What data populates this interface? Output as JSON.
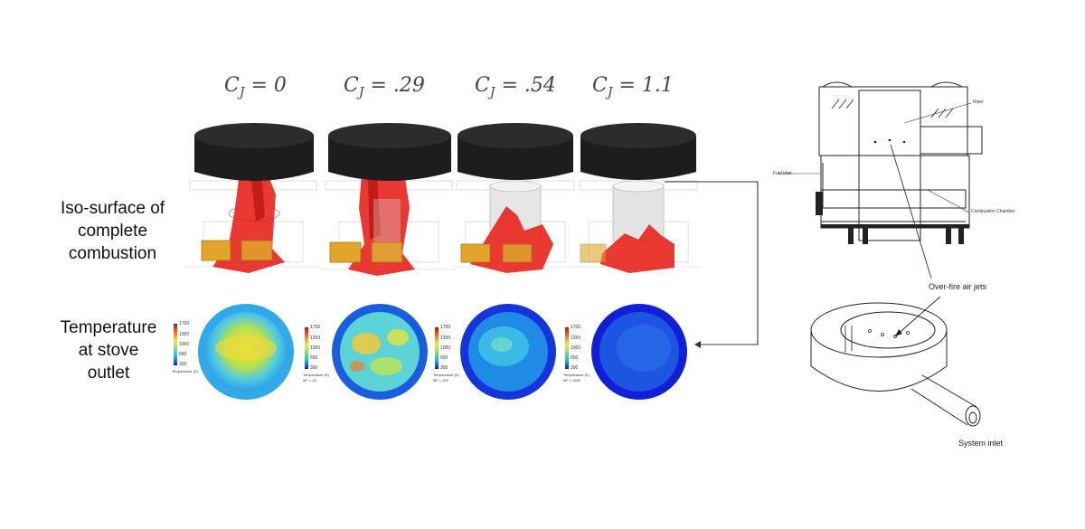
{
  "cases": [
    {
      "symbol": "C",
      "subscript": "J",
      "value": "= 0"
    },
    {
      "symbol": "C",
      "subscript": "J",
      "value": "= .29"
    },
    {
      "symbol": "C",
      "subscript": "J",
      "value": "= .54"
    },
    {
      "symbol": "C",
      "subscript": "J",
      "value": "= 1.1"
    }
  ],
  "row_labels": {
    "iso_surface": [
      "Iso-surface of",
      "complete",
      "combustion"
    ],
    "temperature": [
      "Temperature",
      "at stove",
      "outlet"
    ]
  },
  "legends": [
    {
      "ticks": [
        "1700",
        "1350",
        "1000",
        "650",
        "300"
      ],
      "caption": "Temperature (K)",
      "extra": ""
    },
    {
      "ticks": [
        "1700",
        "1350",
        "1000",
        "650",
        "300"
      ],
      "caption": "Temperature (K)",
      "extra": "MF = 13"
    },
    {
      "ticks": [
        "1700",
        "1350",
        "1000",
        "650",
        "300"
      ],
      "caption": "Temperature (K)",
      "extra": "MF = 200"
    },
    {
      "ticks": [
        "1700",
        "1350",
        "1000",
        "650",
        "300"
      ],
      "caption": "Temperature (K)",
      "extra": "MF = 3400"
    }
  ],
  "diagram": {
    "riser": "Riser",
    "fuel_inlet": "Fuel Inlet",
    "combustion_chamber": "Combustion Chamber",
    "over_fire_air_jets": "Over-fire air jets",
    "system_inlet": "System inlet"
  },
  "colors": {
    "flame": "#e8221c",
    "pot": "#1d1d1d",
    "fuel_box": "#e0a52a",
    "contour_low": "#0b1fd1",
    "contour_high": "#ffe23b"
  }
}
